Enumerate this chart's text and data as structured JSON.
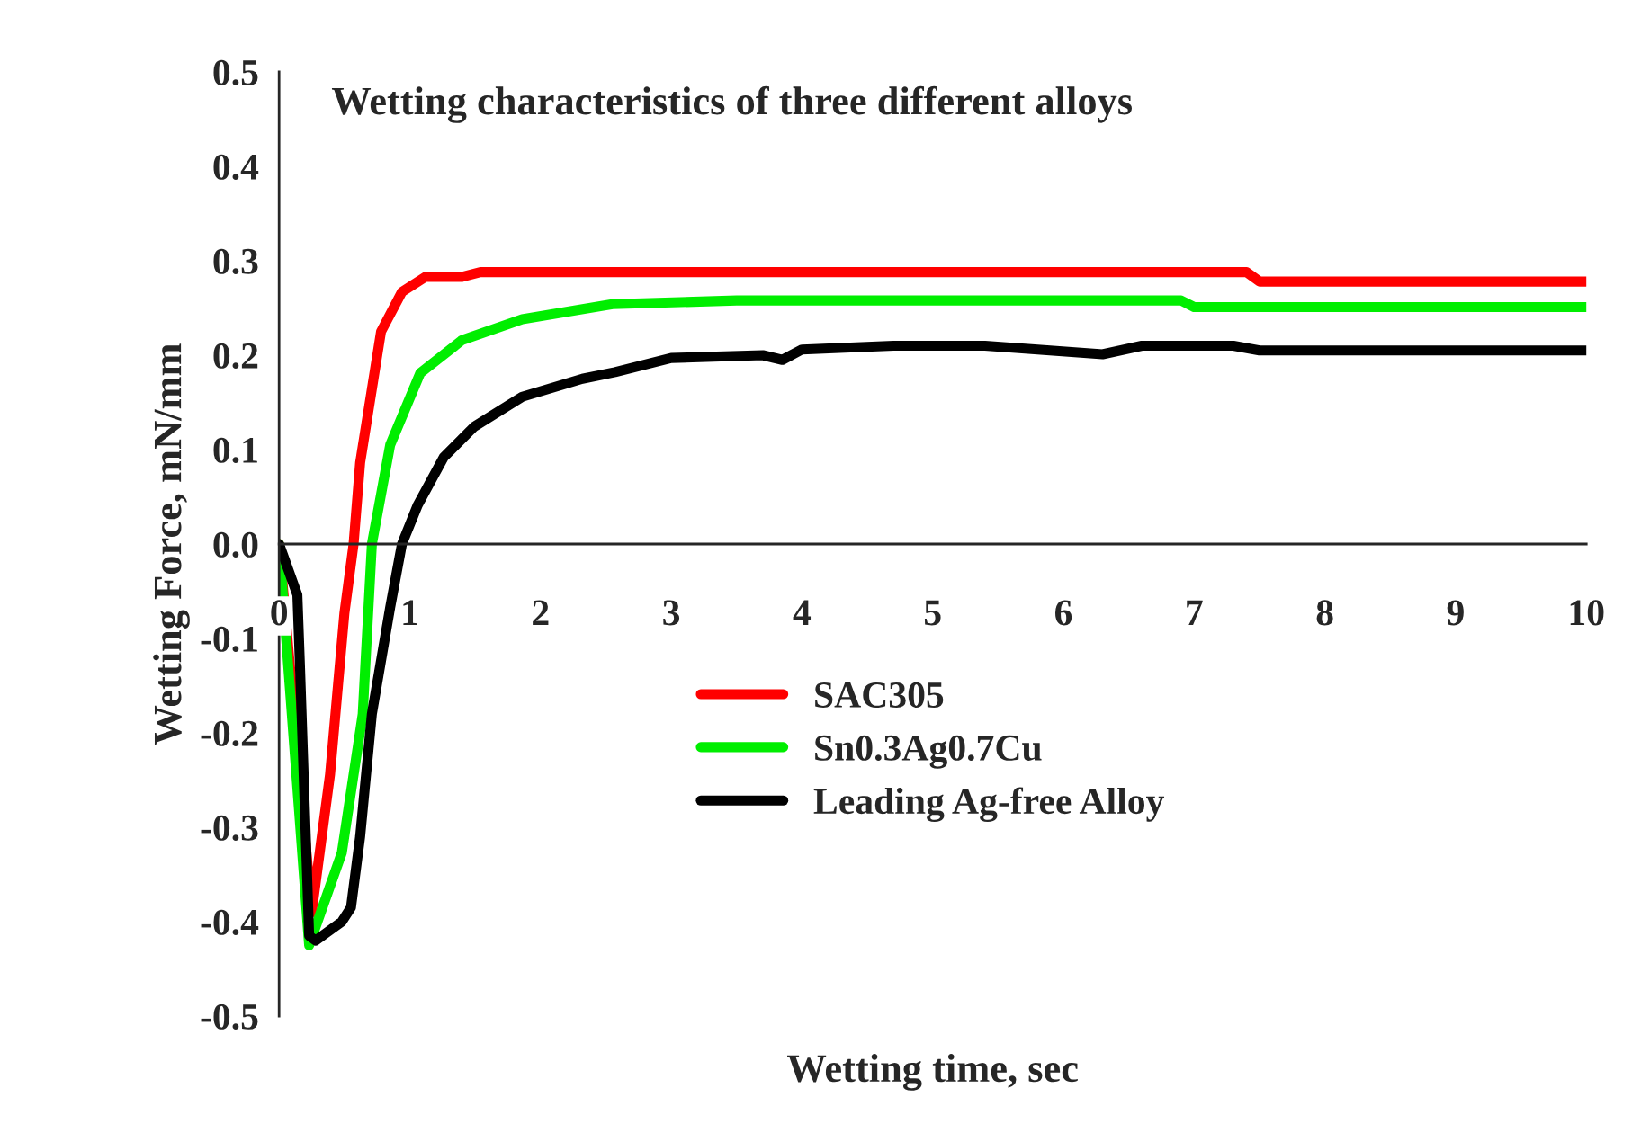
{
  "chart_data": {
    "type": "line",
    "title": "Wetting characteristics of three different alloys",
    "xlabel": "Wetting time, sec",
    "ylabel": "Wetting Force, mN/mm",
    "xlim": [
      0,
      10
    ],
    "xticks": [
      0,
      1,
      2,
      3,
      4,
      5,
      6,
      7,
      8,
      9,
      10
    ],
    "ylim": [
      -0.5,
      0.5
    ],
    "yticks": [
      {
        "value": -0.5,
        "label": "-0.5"
      },
      {
        "value": -0.4,
        "label": "-0.4"
      },
      {
        "value": -0.3,
        "label": "-0.3"
      },
      {
        "value": -0.2,
        "label": "-0.2"
      },
      {
        "value": -0.1,
        "label": "-0.1"
      },
      {
        "value": 0,
        "label": "0.0"
      },
      {
        "value": 0.1,
        "label": "0.1"
      },
      {
        "value": 0.2,
        "label": "0.2"
      },
      {
        "value": 0.3,
        "label": "0.3"
      },
      {
        "value": 0.4,
        "label": "0.4"
      },
      {
        "value": 0.5,
        "label": "0.5"
      }
    ],
    "grid": false,
    "legend": "bottom",
    "marker": "none",
    "line_style": "solid",
    "series": [
      {
        "name": "SAC305",
        "color": "#ff0000",
        "x": [
          0,
          0.25,
          0.39,
          0.5,
          0.57,
          0.62,
          0.78,
          0.94,
          1.12,
          1.4,
          1.54,
          2.55,
          4,
          6,
          7.4,
          7.5,
          10
        ],
        "values": [
          0,
          -0.39,
          -0.244,
          -0.073,
          0,
          0.086,
          0.225,
          0.267,
          0.283,
          0.283,
          0.288,
          0.288,
          0.288,
          0.288,
          0.288,
          0.278,
          0.278
        ]
      },
      {
        "name": "Sn0.3Ag0.7Cu",
        "color": "#00ee00",
        "x": [
          0,
          0.23,
          0.48,
          0.64,
          0.71,
          0.85,
          1.08,
          1.4,
          1.86,
          2.55,
          3.5,
          5,
          6.9,
          7,
          10
        ],
        "values": [
          0,
          -0.425,
          -0.327,
          -0.18,
          0,
          0.105,
          0.181,
          0.216,
          0.238,
          0.254,
          0.258,
          0.258,
          0.258,
          0.251,
          0.251
        ]
      },
      {
        "name": "Leading Ag-free Alloy",
        "color": "#000000",
        "x": [
          0,
          0.14,
          0.16,
          0.23,
          0.28,
          0.48,
          0.55,
          0.62,
          0.71,
          0.85,
          0.94,
          1.06,
          1.26,
          1.49,
          1.86,
          2.32,
          2.57,
          3,
          3.7,
          3.85,
          4,
          4.7,
          5.4,
          6.3,
          6.6,
          7.3,
          7.5,
          10
        ],
        "values": [
          0,
          -0.054,
          -0.13,
          -0.415,
          -0.42,
          -0.4,
          -0.385,
          -0.31,
          -0.18,
          -0.067,
          0,
          0.041,
          0.092,
          0.124,
          0.156,
          0.175,
          0.182,
          0.197,
          0.2,
          0.195,
          0.206,
          0.21,
          0.21,
          0.201,
          0.21,
          0.21,
          0.205,
          0.205
        ]
      }
    ]
  }
}
